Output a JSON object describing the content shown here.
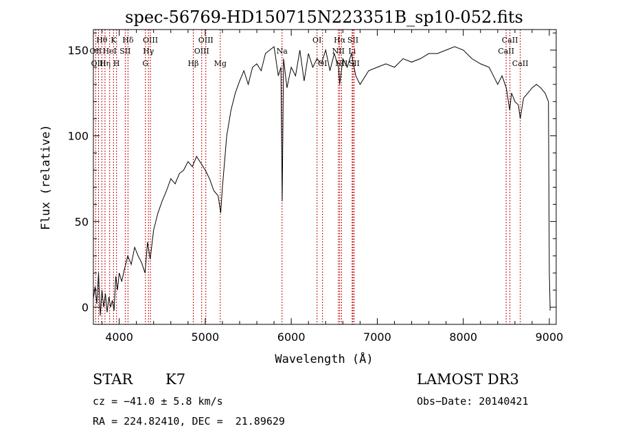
{
  "chart_data": {
    "type": "line",
    "title": "spec-56769-HD150715N223351B_sp10-052.fits",
    "xlabel": "Wavelength (Å)",
    "ylabel": "Flux (relative)",
    "xlim": [
      3700,
      9080
    ],
    "ylim": [
      -10,
      162
    ],
    "xticks": [
      4000,
      5000,
      6000,
      7000,
      8000,
      9000
    ],
    "yticks": [
      0,
      50,
      100,
      150
    ],
    "grid": false,
    "series": [
      {
        "color": "#000000",
        "x": [
          3700,
          3720,
          3740,
          3760,
          3780,
          3800,
          3820,
          3840,
          3860,
          3880,
          3900,
          3920,
          3940,
          3960,
          3980,
          4000,
          4030,
          4060,
          4100,
          4140,
          4180,
          4220,
          4260,
          4300,
          4330,
          4360,
          4400,
          4450,
          4500,
          4550,
          4600,
          4650,
          4700,
          4750,
          4800,
          4850,
          4900,
          4950,
          5000,
          5050,
          5100,
          5150,
          5180,
          5200,
          5250,
          5300,
          5350,
          5400,
          5450,
          5500,
          5550,
          5600,
          5650,
          5700,
          5750,
          5800,
          5850,
          5880,
          5895,
          5910,
          5950,
          6000,
          6050,
          6100,
          6150,
          6200,
          6250,
          6300,
          6350,
          6400,
          6450,
          6500,
          6550,
          6563,
          6600,
          6650,
          6700,
          6750,
          6800,
          6900,
          7000,
          7100,
          7200,
          7300,
          7400,
          7500,
          7600,
          7700,
          7800,
          7900,
          8000,
          8100,
          8200,
          8300,
          8400,
          8450,
          8500,
          8540,
          8560,
          8600,
          8640,
          8662,
          8700,
          8750,
          8800,
          8850,
          8900,
          8950,
          8990,
          9000,
          9010
        ],
        "y": [
          5,
          12,
          2,
          20,
          -5,
          10,
          0,
          8,
          -3,
          6,
          0,
          4,
          -2,
          18,
          10,
          20,
          15,
          22,
          30,
          25,
          35,
          30,
          26,
          20,
          38,
          28,
          45,
          55,
          62,
          68,
          75,
          72,
          78,
          80,
          85,
          82,
          88,
          84,
          80,
          75,
          68,
          65,
          55,
          70,
          100,
          115,
          125,
          132,
          138,
          130,
          140,
          142,
          138,
          148,
          150,
          152,
          135,
          140,
          62,
          145,
          128,
          140,
          135,
          150,
          132,
          148,
          140,
          145,
          142,
          150,
          138,
          148,
          140,
          130,
          145,
          140,
          148,
          135,
          130,
          138,
          140,
          142,
          140,
          145,
          143,
          145,
          148,
          148,
          150,
          152,
          150,
          145,
          142,
          140,
          130,
          135,
          128,
          115,
          125,
          120,
          118,
          110,
          122,
          125,
          128,
          130,
          128,
          125,
          120,
          20,
          -2
        ]
      }
    ],
    "lines": [
      {
        "name": "Hθ",
        "x": 3798,
        "row": 0
      },
      {
        "name": "OII",
        "x": 3727,
        "row": 1
      },
      {
        "name": "OIII",
        "x": 3760,
        "row": 2
      },
      {
        "name": "Hη",
        "x": 3835,
        "row": 2
      },
      {
        "name": "K",
        "x": 3934,
        "row": 0
      },
      {
        "name": "HeI",
        "x": 3889,
        "row": 1
      },
      {
        "name": "SII",
        "x": 4070,
        "row": 1
      },
      {
        "name": "H",
        "x": 3969,
        "row": 2
      },
      {
        "name": "Hδ",
        "x": 4102,
        "row": 0
      },
      {
        "name": "OIII",
        "x": 4363,
        "row": 0
      },
      {
        "name": "Hγ",
        "x": 4340,
        "row": 1
      },
      {
        "name": "G",
        "x": 4305,
        "row": 2
      },
      {
        "name": "OIII",
        "x": 5007,
        "row": 0
      },
      {
        "name": "OIII",
        "x": 4959,
        "row": 1
      },
      {
        "name": "Hβ",
        "x": 4861,
        "row": 2
      },
      {
        "name": "Mg",
        "x": 5175,
        "row": 2
      },
      {
        "name": "Na",
        "x": 5893,
        "row": 1
      },
      {
        "name": "OI",
        "x": 6300,
        "row": 0
      },
      {
        "name": "OI",
        "x": 6364,
        "row": 2
      },
      {
        "name": "Hα",
        "x": 6563,
        "row": 0
      },
      {
        "name": "SII",
        "x": 6717,
        "row": 0
      },
      {
        "name": "NII",
        "x": 6548,
        "row": 1
      },
      {
        "name": "Li",
        "x": 6708,
        "row": 1
      },
      {
        "name": "NII",
        "x": 6584,
        "row": 2
      },
      {
        "name": "SII",
        "x": 6731,
        "row": 2
      },
      {
        "name": "CaII",
        "x": 8542,
        "row": 0
      },
      {
        "name": "CaII",
        "x": 8498,
        "row": 1
      },
      {
        "name": "CaII",
        "x": 8662,
        "row": 2
      }
    ]
  },
  "info": {
    "object_class": "STAR",
    "subclass": "K7",
    "survey": "LAMOST DR3",
    "cz": "cz = −41.0 ± 5.8 km/s",
    "obs_date": "Obs−Date: 20140421",
    "coords": "RA = 224.82410, DEC =  21.89629"
  }
}
